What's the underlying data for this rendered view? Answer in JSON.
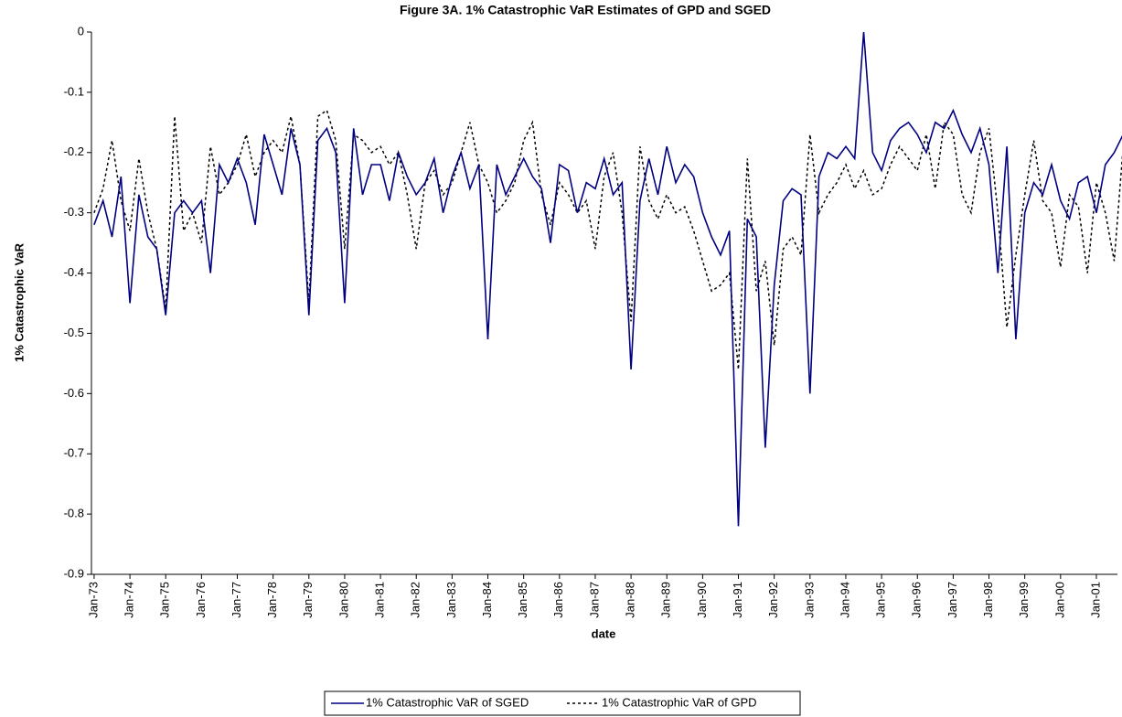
{
  "chart_data": {
    "type": "line",
    "title": "Figure 3A. 1% Catastrophic VaR Estimates of GPD and SGED",
    "x_label": "date",
    "y_label": "1% Catastrophic VaR",
    "categories": [
      "Jan-73",
      null,
      null,
      null,
      "Jan-74",
      null,
      null,
      null,
      "Jan-75",
      null,
      null,
      null,
      "Jan-76",
      null,
      null,
      null,
      "Jan-77",
      null,
      null,
      null,
      "Jan-78",
      null,
      null,
      null,
      "Jan-79",
      null,
      null,
      null,
      "Jan-80",
      null,
      null,
      null,
      "Jan-81",
      null,
      null,
      null,
      "Jan-82",
      null,
      null,
      null,
      "Jan-83",
      null,
      null,
      null,
      "Jan-84",
      null,
      null,
      null,
      "Jan-85",
      null,
      null,
      null,
      "Jan-86",
      null,
      null,
      null,
      "Jan-87",
      null,
      null,
      null,
      "Jan-88",
      null,
      null,
      null,
      "Jan-89",
      null,
      null,
      null,
      "Jan-90",
      null,
      null,
      null,
      "Jan-91",
      null,
      null,
      null,
      "Jan-92",
      null,
      null,
      null,
      "Jan-93",
      null,
      null,
      null,
      "Jan-94",
      null,
      null,
      null,
      "Jan-95",
      null,
      null,
      null,
      "Jan-96",
      null,
      null,
      null,
      "Jan-97",
      null,
      null,
      null,
      "Jan-98",
      null,
      null,
      null,
      "Jan-99",
      null,
      null,
      null,
      "Jan-00",
      null,
      null,
      null,
      "Jan-01",
      null,
      null,
      null
    ],
    "series": [
      {
        "name": "1% Catastrophic VaR of SGED",
        "color": "#000080",
        "dash": false,
        "values": [
          -0.32,
          -0.28,
          -0.34,
          -0.24,
          -0.45,
          -0.27,
          -0.34,
          -0.36,
          -0.47,
          -0.3,
          -0.28,
          -0.3,
          -0.28,
          -0.4,
          -0.22,
          -0.25,
          -0.21,
          -0.25,
          -0.32,
          -0.17,
          -0.22,
          -0.27,
          -0.16,
          -0.22,
          -0.47,
          -0.18,
          -0.16,
          -0.2,
          -0.45,
          -0.16,
          -0.27,
          -0.22,
          -0.22,
          -0.28,
          -0.2,
          -0.24,
          -0.27,
          -0.25,
          -0.21,
          -0.3,
          -0.24,
          -0.2,
          -0.26,
          -0.22,
          -0.51,
          -0.22,
          -0.27,
          -0.24,
          -0.21,
          -0.24,
          -0.26,
          -0.35,
          -0.22,
          -0.23,
          -0.3,
          -0.25,
          -0.26,
          -0.21,
          -0.27,
          -0.25,
          -0.56,
          -0.28,
          -0.21,
          -0.27,
          -0.19,
          -0.25,
          -0.22,
          -0.24,
          -0.3,
          -0.34,
          -0.37,
          -0.33,
          -0.82,
          -0.31,
          -0.34,
          -0.69,
          -0.42,
          -0.28,
          -0.26,
          -0.27,
          -0.6,
          -0.24,
          -0.2,
          -0.21,
          -0.19,
          -0.21,
          0,
          -0.2,
          -0.23,
          -0.18,
          -0.16,
          -0.15,
          -0.17,
          -0.2,
          -0.15,
          -0.16,
          -0.13,
          -0.17,
          -0.2,
          -0.16,
          -0.22,
          -0.4,
          -0.19,
          -0.51,
          -0.3,
          -0.25,
          -0.27,
          -0.22,
          -0.28,
          -0.31,
          -0.25,
          -0.24,
          -0.3,
          -0.22,
          -0.2,
          -0.17
        ]
      },
      {
        "name": "1% Catastrophic VaR of GPD",
        "color": "#000000",
        "dash": true,
        "values": [
          -0.3,
          -0.26,
          -0.18,
          -0.28,
          -0.33,
          -0.21,
          -0.3,
          -0.36,
          -0.46,
          -0.14,
          -0.33,
          -0.3,
          -0.35,
          -0.19,
          -0.27,
          -0.25,
          -0.22,
          -0.17,
          -0.24,
          -0.2,
          -0.18,
          -0.2,
          -0.14,
          -0.22,
          -0.45,
          -0.14,
          -0.13,
          -0.18,
          -0.36,
          -0.17,
          -0.18,
          -0.2,
          -0.19,
          -0.22,
          -0.2,
          -0.27,
          -0.36,
          -0.25,
          -0.23,
          -0.27,
          -0.25,
          -0.2,
          -0.15,
          -0.22,
          -0.25,
          -0.3,
          -0.28,
          -0.25,
          -0.18,
          -0.15,
          -0.27,
          -0.32,
          -0.25,
          -0.27,
          -0.3,
          -0.28,
          -0.36,
          -0.24,
          -0.2,
          -0.3,
          -0.48,
          -0.19,
          -0.28,
          -0.31,
          -0.27,
          -0.3,
          -0.29,
          -0.33,
          -0.38,
          -0.43,
          -0.42,
          -0.4,
          -0.56,
          -0.21,
          -0.43,
          -0.38,
          -0.52,
          -0.36,
          -0.34,
          -0.37,
          -0.17,
          -0.3,
          -0.27,
          -0.25,
          -0.22,
          -0.26,
          -0.23,
          -0.27,
          -0.26,
          -0.22,
          -0.19,
          -0.21,
          -0.23,
          -0.17,
          -0.26,
          -0.15,
          -0.17,
          -0.27,
          -0.3,
          -0.2,
          -0.16,
          -0.3,
          -0.49,
          -0.37,
          -0.27,
          -0.18,
          -0.28,
          -0.3,
          -0.39,
          -0.27,
          -0.29,
          -0.4,
          -0.25,
          -0.3,
          -0.38,
          -0.19
        ]
      }
    ],
    "ylim": [
      -0.9,
      0
    ],
    "yticks": [
      -0.9,
      -0.8,
      -0.7,
      -0.6,
      -0.5,
      -0.4,
      -0.3,
      -0.2,
      -0.1,
      0
    ],
    "grid": false
  }
}
